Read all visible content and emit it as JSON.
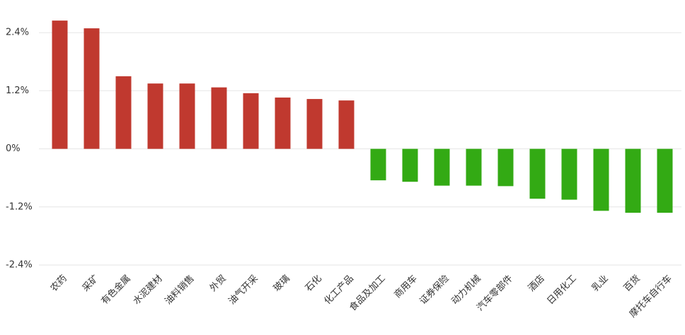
{
  "chart_data": {
    "type": "bar",
    "categories": [
      "农药",
      "采矿",
      "有色金属",
      "水泥建材",
      "油料销售",
      "外贸",
      "油气开采",
      "玻璃",
      "石化",
      "化工产品",
      "食品及加工",
      "商用车",
      "证券保险",
      "动力机械",
      "汽车零部件",
      "酒店",
      "日用化工",
      "乳业",
      "百货",
      "摩托车自行车"
    ],
    "values": [
      2.65,
      2.49,
      1.5,
      1.35,
      1.35,
      1.27,
      1.15,
      1.06,
      1.03,
      1.0,
      -0.65,
      -0.68,
      -0.76,
      -0.76,
      -0.77,
      -1.03,
      -1.05,
      -1.28,
      -1.32,
      -1.32
    ],
    "positive_color": "#c0392f",
    "negative_color": "#33aa14",
    "ylim": [
      -2.4,
      2.9
    ],
    "yticks": [
      {
        "value": 2.4,
        "label": "2.4%"
      },
      {
        "value": 1.2,
        "label": "1.2%"
      },
      {
        "value": 0,
        "label": "0%"
      },
      {
        "value": -1.2,
        "label": "-1.2%"
      },
      {
        "value": -2.4,
        "label": "-2.4%"
      }
    ],
    "grid": true
  }
}
